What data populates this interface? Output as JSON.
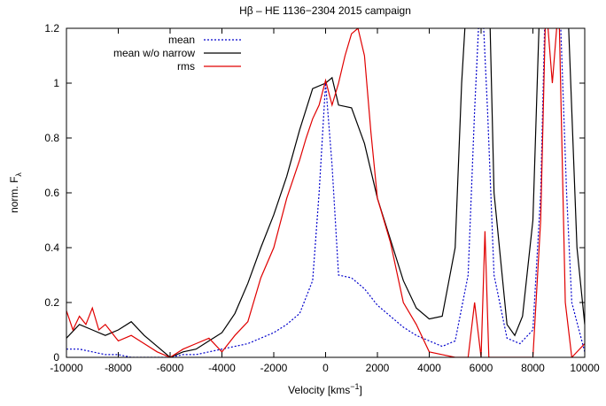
{
  "chart_data": {
    "type": "line",
    "title": "Hβ – HE 1136−2304 2015 campaign",
    "x_label": {
      "text": "Velocity [kms",
      "sup": "−1",
      "end": "]"
    },
    "y_label": {
      "text": "norm. F",
      "sub": "λ"
    },
    "xlim": [
      -10000,
      10000
    ],
    "ylim": [
      0,
      1.2
    ],
    "xticks": [
      -10000,
      -8000,
      -6000,
      -4000,
      -2000,
      0,
      2000,
      4000,
      6000,
      8000,
      10000
    ],
    "yticks": [
      0,
      0.2,
      0.4,
      0.6,
      0.8,
      1,
      1.2
    ],
    "legend": "top-left",
    "series": [
      {
        "name": "mean",
        "color": "#0000cc",
        "dash": "dotted",
        "x": [
          -10000,
          -9500,
          -9000,
          -8500,
          -8000,
          -7500,
          -7000,
          -6500,
          -6000,
          -5500,
          -5000,
          -4500,
          -4000,
          -3500,
          -3000,
          -2500,
          -2000,
          -1500,
          -1000,
          -500,
          -250,
          0,
          250,
          500,
          1000,
          1500,
          2000,
          2500,
          3000,
          3500,
          4000,
          4500,
          5000,
          5500,
          5750,
          6000,
          6250,
          6500,
          7000,
          7500,
          8000,
          8300,
          8500,
          9000,
          9300,
          9500,
          10000
        ],
        "values": [
          0.03,
          0.03,
          0.02,
          0.01,
          0.01,
          0,
          0,
          0,
          0,
          0.01,
          0.01,
          0.02,
          0.03,
          0.04,
          0.05,
          0.07,
          0.09,
          0.12,
          0.16,
          0.28,
          0.6,
          1.0,
          0.7,
          0.3,
          0.29,
          0.25,
          0.19,
          0.15,
          0.11,
          0.08,
          0.06,
          0.04,
          0.06,
          0.3,
          0.9,
          1.4,
          0.9,
          0.3,
          0.07,
          0.05,
          0.1,
          0.6,
          1.4,
          1.4,
          0.6,
          0.2,
          0.02
        ]
      },
      {
        "name": "mean w/o narrow",
        "color": "#000000",
        "dash": "solid",
        "x": [
          -10000,
          -9500,
          -9000,
          -8500,
          -8000,
          -7500,
          -7000,
          -6500,
          -6000,
          -5500,
          -5000,
          -4500,
          -4000,
          -3500,
          -3000,
          -2500,
          -2000,
          -1500,
          -1000,
          -500,
          0,
          250,
          500,
          1000,
          1500,
          2000,
          2500,
          3000,
          3500,
          4000,
          4500,
          5000,
          5250,
          5500,
          6300,
          6500,
          7000,
          7300,
          7600,
          8000,
          8300,
          9300,
          9700,
          10000
        ],
        "values": [
          0.07,
          0.12,
          0.1,
          0.08,
          0.1,
          0.13,
          0.08,
          0.04,
          0,
          0.02,
          0.03,
          0.06,
          0.09,
          0.16,
          0.27,
          0.4,
          0.52,
          0.66,
          0.83,
          0.98,
          1.0,
          1.02,
          0.92,
          0.91,
          0.78,
          0.58,
          0.43,
          0.28,
          0.18,
          0.14,
          0.15,
          0.4,
          1.0,
          1.4,
          1.4,
          0.6,
          0.12,
          0.08,
          0.15,
          0.5,
          1.4,
          1.4,
          0.4,
          0.12
        ]
      },
      {
        "name": "rms",
        "color": "#e00000",
        "dash": "solid",
        "x": [
          -10000,
          -9750,
          -9500,
          -9250,
          -9000,
          -8750,
          -8500,
          -8000,
          -7500,
          -7000,
          -6500,
          -6000,
          -5500,
          -5000,
          -4500,
          -4000,
          -3500,
          -3000,
          -2500,
          -2000,
          -1500,
          -1000,
          -750,
          -500,
          -250,
          0,
          250,
          500,
          750,
          1000,
          1250,
          1500,
          1750,
          2000,
          2500,
          3000,
          3500,
          4000,
          4500,
          5000,
          5500,
          5750,
          6000,
          6150,
          6300,
          7000,
          8000,
          8300,
          8500,
          8750,
          9000,
          9250,
          9500,
          10000
        ],
        "values": [
          0.17,
          0.1,
          0.15,
          0.12,
          0.18,
          0.1,
          0.12,
          0.06,
          0.08,
          0.05,
          0.02,
          0,
          0.03,
          0.05,
          0.07,
          0.02,
          0.08,
          0.13,
          0.29,
          0.4,
          0.58,
          0.72,
          0.8,
          0.87,
          0.92,
          1.01,
          0.92,
          1.0,
          1.1,
          1.18,
          1.2,
          1.1,
          0.82,
          0.58,
          0.42,
          0.2,
          0.12,
          0.02,
          0.01,
          0,
          0,
          0.2,
          0,
          0.46,
          0,
          0,
          0,
          0.5,
          1.3,
          1.0,
          1.3,
          0.2,
          0,
          0.05
        ]
      }
    ]
  }
}
